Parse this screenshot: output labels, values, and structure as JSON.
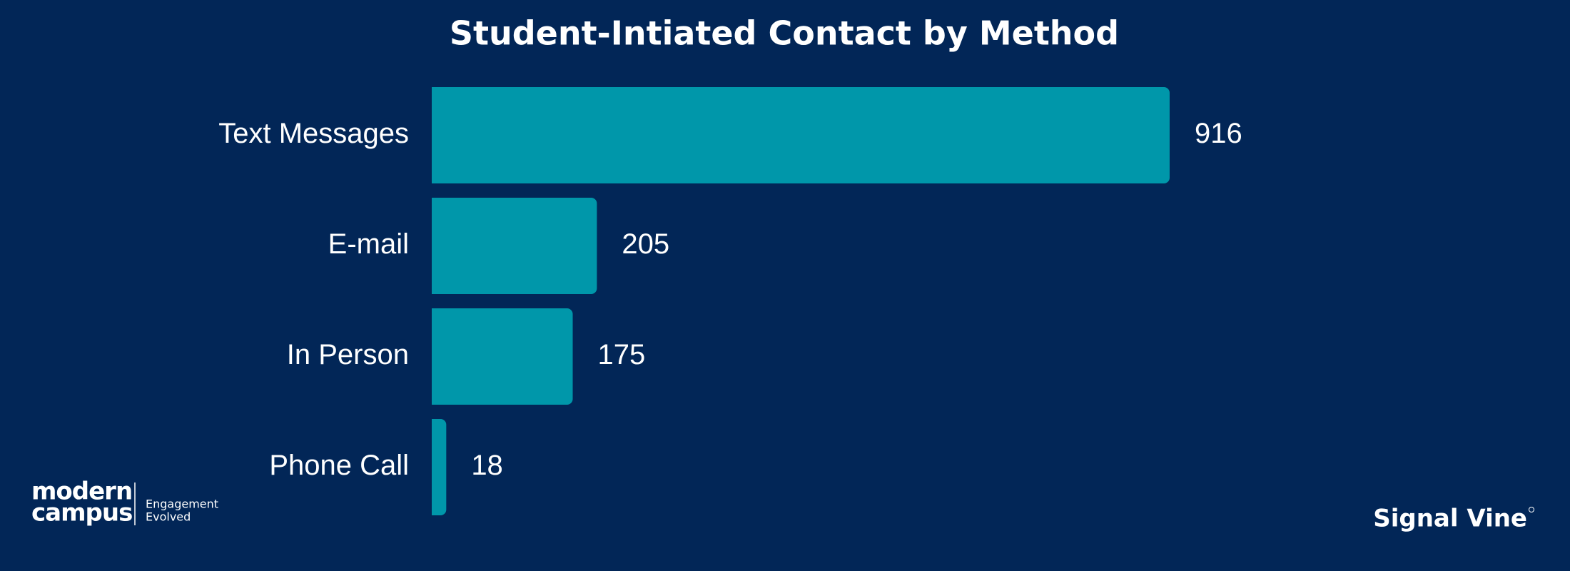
{
  "chart_data": {
    "type": "hbar",
    "title": "Student-Intiated Contact by Method",
    "categories": [
      "Text Messages",
      "E-mail",
      "In Person",
      "Phone Call"
    ],
    "values": [
      916,
      205,
      175,
      18
    ],
    "color": "#0097aa"
  },
  "branding": {
    "left_logo": [
      "modern",
      "campus"
    ],
    "left_tagline": [
      "Engagement",
      "Evolved"
    ],
    "right_logo": "Signal Vine"
  }
}
